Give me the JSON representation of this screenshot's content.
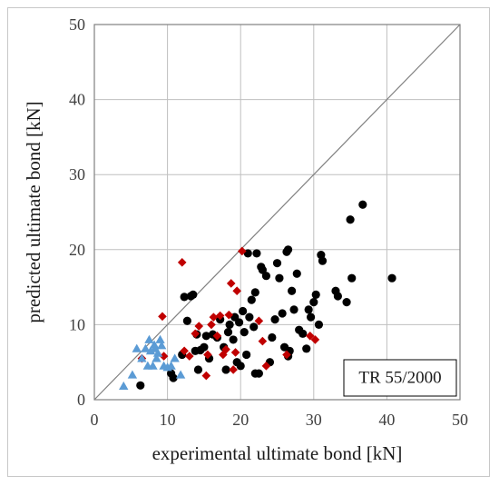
{
  "chart_data": {
    "type": "scatter",
    "title": "",
    "xlabel": "experimental ultimate bond [kN]",
    "ylabel": "predicted ultimate bond [kN]",
    "xlim": [
      0,
      50
    ],
    "ylim": [
      0,
      50
    ],
    "xticks": [
      0,
      10,
      20,
      30,
      40,
      50
    ],
    "yticks": [
      0,
      10,
      20,
      30,
      40,
      50
    ],
    "grid": true,
    "reference_line": "y = x",
    "annotation": "TR 55/2000",
    "series": [
      {
        "marker": "circle",
        "color": "#000000",
        "points": [
          [
            6.3,
            1.9
          ],
          [
            10.5,
            3.5
          ],
          [
            10.8,
            2.9
          ],
          [
            12,
            6.0
          ],
          [
            12.3,
            13.7
          ],
          [
            12.7,
            10.5
          ],
          [
            13.2,
            13.8
          ],
          [
            13.5,
            14.0
          ],
          [
            13.8,
            6.5
          ],
          [
            14.0,
            8.7
          ],
          [
            14.2,
            4.0
          ],
          [
            14.5,
            6.6
          ],
          [
            15.0,
            7.0
          ],
          [
            15.3,
            8.5
          ],
          [
            15.7,
            5.5
          ],
          [
            16.2,
            8.7
          ],
          [
            16.8,
            8.3
          ],
          [
            17.2,
            10.7
          ],
          [
            17.7,
            7.0
          ],
          [
            18.0,
            4.0
          ],
          [
            18.5,
            10.0
          ],
          [
            19.0,
            8.0
          ],
          [
            19.2,
            11.0
          ],
          [
            19.5,
            5.0
          ],
          [
            19.8,
            10.3
          ],
          [
            20.0,
            4.5
          ],
          [
            20.3,
            11.8
          ],
          [
            20.5,
            9.0
          ],
          [
            20.8,
            6.0
          ],
          [
            21.0,
            19.5
          ],
          [
            21.2,
            11.0
          ],
          [
            21.5,
            13.3
          ],
          [
            21.8,
            9.7
          ],
          [
            22.0,
            14.3
          ],
          [
            22.2,
            19.5
          ],
          [
            22.5,
            3.5
          ],
          [
            22.8,
            17.7
          ],
          [
            23.0,
            17.3
          ],
          [
            23.5,
            16.5
          ],
          [
            24.0,
            5.0
          ],
          [
            24.3,
            8.3
          ],
          [
            24.7,
            10.7
          ],
          [
            25.0,
            18.2
          ],
          [
            25.3,
            16.2
          ],
          [
            25.7,
            11.5
          ],
          [
            26.0,
            7.0
          ],
          [
            26.3,
            19.7
          ],
          [
            26.5,
            20.0
          ],
          [
            26.7,
            6.5
          ],
          [
            27.0,
            14.5
          ],
          [
            27.3,
            12.0
          ],
          [
            27.7,
            16.8
          ],
          [
            28.0,
            9.3
          ],
          [
            28.5,
            8.8
          ],
          [
            29.0,
            6.8
          ],
          [
            29.3,
            12.0
          ],
          [
            29.6,
            11.0
          ],
          [
            30.0,
            13.0
          ],
          [
            30.3,
            14.0
          ],
          [
            30.7,
            10.0
          ],
          [
            31.0,
            19.3
          ],
          [
            31.2,
            18.5
          ],
          [
            33.0,
            14.5
          ],
          [
            33.3,
            13.8
          ],
          [
            34.5,
            13.0
          ],
          [
            35.0,
            24.0
          ],
          [
            35.2,
            16.2
          ],
          [
            36.7,
            26.0
          ],
          [
            40.7,
            16.2
          ],
          [
            26.5,
            5.8
          ],
          [
            22.0,
            3.5
          ],
          [
            18.3,
            9.0
          ]
        ]
      },
      {
        "marker": "diamond",
        "color": "#c00000",
        "points": [
          [
            6.5,
            5.5
          ],
          [
            9.3,
            11.1
          ],
          [
            9.5,
            5.8
          ],
          [
            12.0,
            18.3
          ],
          [
            12.3,
            6.5
          ],
          [
            13.0,
            5.8
          ],
          [
            13.8,
            8.8
          ],
          [
            14.3,
            9.8
          ],
          [
            15.3,
            3.2
          ],
          [
            15.5,
            6.0
          ],
          [
            16.0,
            10.0
          ],
          [
            16.3,
            11.0
          ],
          [
            16.8,
            8.5
          ],
          [
            17.2,
            11.2
          ],
          [
            17.6,
            6.0
          ],
          [
            18.0,
            6.7
          ],
          [
            18.4,
            11.3
          ],
          [
            18.7,
            15.5
          ],
          [
            19.0,
            4.0
          ],
          [
            19.3,
            6.3
          ],
          [
            19.5,
            14.5
          ],
          [
            20.2,
            19.8
          ],
          [
            22.5,
            10.5
          ],
          [
            23.0,
            7.8
          ],
          [
            23.5,
            4.5
          ],
          [
            26.3,
            6.0
          ],
          [
            29.5,
            8.5
          ],
          [
            30.2,
            8.0
          ]
        ]
      },
      {
        "marker": "triangle",
        "color": "#5b9bd5",
        "points": [
          [
            4.0,
            1.8
          ],
          [
            5.2,
            3.3
          ],
          [
            5.8,
            6.8
          ],
          [
            6.5,
            5.5
          ],
          [
            7.0,
            6.8
          ],
          [
            7.3,
            4.5
          ],
          [
            7.5,
            8.0
          ],
          [
            7.7,
            6.5
          ],
          [
            8.0,
            4.5
          ],
          [
            8.2,
            7.3
          ],
          [
            8.5,
            5.5
          ],
          [
            8.7,
            6.2
          ],
          [
            9.0,
            8.0
          ],
          [
            9.2,
            7.2
          ],
          [
            9.5,
            4.5
          ],
          [
            10.0,
            4.3
          ],
          [
            10.5,
            4.5
          ],
          [
            11.0,
            5.5
          ],
          [
            11.8,
            3.3
          ],
          [
            8.3,
            6.8
          ]
        ]
      }
    ]
  }
}
